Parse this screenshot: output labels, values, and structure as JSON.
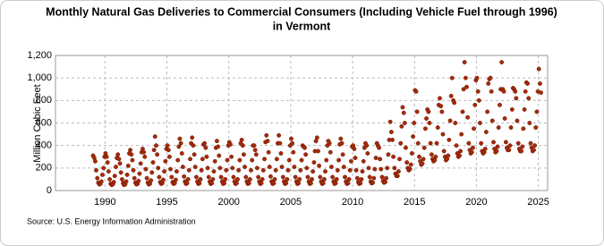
{
  "chart_data": {
    "type": "scatter",
    "title": [
      "Monthly Natural Gas Deliveries to Commercial Consumers (Including Vehicle Fuel through 1996)",
      "in Vermont"
    ],
    "y_label": "Million Cubic Feet",
    "source": "Source: U.S. Energy Information Administration",
    "color": "#a52a0a",
    "grid": true,
    "xlim": [
      1986,
      2025.75
    ],
    "xticks": [
      1990,
      1995,
      2000,
      2005,
      2010,
      2015,
      2020,
      2025
    ],
    "ylim": [
      0,
      1200
    ],
    "yticks": [
      0,
      200,
      400,
      600,
      800,
      {
        "value": 1000,
        "label": "1,000"
      },
      {
        "value": 1200,
        "label": "1,200"
      }
    ],
    "x": [
      1989.04,
      1989.13,
      1989.21,
      1989.29,
      1989.38,
      1989.46,
      1989.54,
      1989.63,
      1989.71,
      1989.79,
      1989.88,
      1989.96,
      1990.04,
      1990.13,
      1990.21,
      1990.29,
      1990.38,
      1990.46,
      1990.54,
      1990.63,
      1990.71,
      1990.79,
      1990.88,
      1990.96,
      1991.04,
      1991.13,
      1991.21,
      1991.29,
      1991.38,
      1991.46,
      1991.54,
      1991.63,
      1991.71,
      1991.79,
      1991.88,
      1991.96,
      1992.04,
      1992.13,
      1992.21,
      1992.29,
      1992.38,
      1992.46,
      1992.54,
      1992.63,
      1992.71,
      1992.79,
      1992.88,
      1992.96,
      1993.04,
      1993.13,
      1993.21,
      1993.29,
      1993.38,
      1993.46,
      1993.54,
      1993.63,
      1993.71,
      1993.79,
      1993.88,
      1993.96,
      1994.04,
      1994.13,
      1994.21,
      1994.29,
      1994.38,
      1994.46,
      1994.54,
      1994.63,
      1994.71,
      1994.79,
      1994.88,
      1994.96,
      1995.04,
      1995.13,
      1995.21,
      1995.29,
      1995.38,
      1995.46,
      1995.54,
      1995.63,
      1995.71,
      1995.79,
      1995.88,
      1995.96,
      1996.04,
      1996.13,
      1996.21,
      1996.29,
      1996.38,
      1996.46,
      1996.54,
      1996.63,
      1996.71,
      1996.79,
      1996.88,
      1996.96,
      1997.04,
      1997.13,
      1997.21,
      1997.29,
      1997.38,
      1997.46,
      1997.54,
      1997.63,
      1997.71,
      1997.79,
      1997.88,
      1997.96,
      1998.04,
      1998.13,
      1998.21,
      1998.29,
      1998.38,
      1998.46,
      1998.54,
      1998.63,
      1998.71,
      1998.79,
      1998.88,
      1998.96,
      1999.04,
      1999.13,
      1999.21,
      1999.29,
      1999.38,
      1999.46,
      1999.54,
      1999.63,
      1999.71,
      1999.79,
      1999.88,
      1999.96,
      2000.04,
      2000.13,
      2000.21,
      2000.29,
      2000.38,
      2000.46,
      2000.54,
      2000.63,
      2000.71,
      2000.79,
      2000.88,
      2000.96,
      2001.04,
      2001.13,
      2001.21,
      2001.29,
      2001.38,
      2001.46,
      2001.54,
      2001.63,
      2001.71,
      2001.79,
      2001.88,
      2001.96,
      2002.04,
      2002.13,
      2002.21,
      2002.29,
      2002.38,
      2002.46,
      2002.54,
      2002.63,
      2002.71,
      2002.79,
      2002.88,
      2002.96,
      2003.04,
      2003.13,
      2003.21,
      2003.29,
      2003.38,
      2003.46,
      2003.54,
      2003.63,
      2003.71,
      2003.79,
      2003.88,
      2003.96,
      2004.04,
      2004.13,
      2004.21,
      2004.29,
      2004.38,
      2004.46,
      2004.54,
      2004.63,
      2004.71,
      2004.79,
      2004.88,
      2004.96,
      2005.04,
      2005.13,
      2005.21,
      2005.29,
      2005.38,
      2005.46,
      2005.54,
      2005.63,
      2005.71,
      2005.79,
      2005.88,
      2005.96,
      2006.04,
      2006.13,
      2006.21,
      2006.29,
      2006.38,
      2006.46,
      2006.54,
      2006.63,
      2006.71,
      2006.79,
      2006.88,
      2006.96,
      2007.04,
      2007.13,
      2007.21,
      2007.29,
      2007.38,
      2007.46,
      2007.54,
      2007.63,
      2007.71,
      2007.79,
      2007.88,
      2007.96,
      2008.04,
      2008.13,
      2008.21,
      2008.29,
      2008.38,
      2008.46,
      2008.54,
      2008.63,
      2008.71,
      2008.79,
      2008.88,
      2008.96,
      2009.04,
      2009.13,
      2009.21,
      2009.29,
      2009.38,
      2009.46,
      2009.54,
      2009.63,
      2009.71,
      2009.79,
      2009.88,
      2009.96,
      2010.04,
      2010.13,
      2010.21,
      2010.29,
      2010.38,
      2010.46,
      2010.54,
      2010.63,
      2010.71,
      2010.79,
      2010.88,
      2010.96,
      2011.04,
      2011.13,
      2011.21,
      2011.29,
      2011.38,
      2011.46,
      2011.54,
      2011.63,
      2011.71,
      2011.79,
      2011.88,
      2011.96,
      2012.04,
      2012.13,
      2012.21,
      2012.29,
      2012.38,
      2012.46,
      2012.54,
      2012.63,
      2012.71,
      2012.79,
      2012.88,
      2012.96,
      2013.04,
      2013.13,
      2013.21,
      2013.29,
      2013.38,
      2013.46,
      2013.54,
      2013.63,
      2013.71,
      2013.79,
      2013.88,
      2013.96,
      2014.04,
      2014.13,
      2014.21,
      2014.29,
      2014.38,
      2014.46,
      2014.54,
      2014.63,
      2014.71,
      2014.79,
      2014.88,
      2014.96,
      2015.04,
      2015.13,
      2015.21,
      2015.29,
      2015.38,
      2015.46,
      2015.54,
      2015.63,
      2015.71,
      2015.79,
      2015.88,
      2015.96,
      2016.04,
      2016.13,
      2016.21,
      2016.29,
      2016.38,
      2016.46,
      2016.54,
      2016.63,
      2016.71,
      2016.79,
      2016.88,
      2016.96,
      2017.04,
      2017.13,
      2017.21,
      2017.29,
      2017.38,
      2017.46,
      2017.54,
      2017.63,
      2017.71,
      2017.79,
      2017.88,
      2017.96,
      2018.04,
      2018.13,
      2018.21,
      2018.29,
      2018.38,
      2018.46,
      2018.54,
      2018.63,
      2018.71,
      2018.79,
      2018.88,
      2018.96,
      2019.04,
      2019.13,
      2019.21,
      2019.29,
      2019.38,
      2019.46,
      2019.54,
      2019.63,
      2019.71,
      2019.79,
      2019.88,
      2019.96,
      2020.04,
      2020.13,
      2020.21,
      2020.29,
      2020.38,
      2020.46,
      2020.54,
      2020.63,
      2020.71,
      2020.79,
      2020.88,
      2020.96,
      2021.04,
      2021.13,
      2021.21,
      2021.29,
      2021.38,
      2021.46,
      2021.54,
      2021.63,
      2021.71,
      2021.79,
      2021.88,
      2021.96,
      2022.04,
      2022.13,
      2022.21,
      2022.29,
      2022.38,
      2022.46,
      2022.54,
      2022.63,
      2022.71,
      2022.79,
      2022.88,
      2022.96,
      2023.04,
      2023.13,
      2023.21,
      2023.29,
      2023.38,
      2023.46,
      2023.54,
      2023.63,
      2023.71,
      2023.79,
      2023.88,
      2023.96,
      2024.04,
      2024.13,
      2024.21,
      2024.29,
      2024.38,
      2024.46,
      2024.54,
      2024.63,
      2024.71,
      2024.79,
      2024.88,
      2024.96,
      2025.04,
      2025.13,
      2025.21
    ],
    "values": [
      310,
      290,
      260,
      180,
      110,
      70,
      55,
      60,
      80,
      140,
      200,
      300,
      330,
      300,
      250,
      170,
      100,
      60,
      50,
      55,
      75,
      130,
      210,
      290,
      320,
      280,
      240,
      160,
      100,
      65,
      50,
      55,
      80,
      140,
      220,
      330,
      360,
      320,
      270,
      180,
      110,
      70,
      55,
      60,
      85,
      150,
      240,
      340,
      370,
      340,
      300,
      190,
      110,
      70,
      55,
      60,
      90,
      160,
      250,
      360,
      480,
      400,
      320,
      200,
      120,
      75,
      60,
      65,
      95,
      170,
      260,
      370,
      400,
      360,
      300,
      190,
      120,
      75,
      60,
      65,
      95,
      170,
      270,
      390,
      460,
      420,
      330,
      210,
      125,
      80,
      60,
      65,
      100,
      180,
      280,
      420,
      470,
      400,
      320,
      210,
      120,
      80,
      60,
      65,
      100,
      180,
      280,
      410,
      420,
      380,
      300,
      200,
      120,
      80,
      60,
      65,
      100,
      170,
      260,
      380,
      440,
      390,
      310,
      200,
      120,
      80,
      60,
      65,
      100,
      180,
      270,
      400,
      430,
      410,
      300,
      200,
      120,
      80,
      60,
      65,
      100,
      180,
      270,
      420,
      450,
      400,
      320,
      210,
      120,
      80,
      60,
      65,
      100,
      180,
      270,
      400,
      400,
      360,
      320,
      200,
      120,
      80,
      60,
      65,
      100,
      180,
      280,
      430,
      490,
      440,
      340,
      210,
      125,
      80,
      60,
      65,
      100,
      180,
      280,
      420,
      490,
      420,
      330,
      210,
      120,
      80,
      60,
      65,
      100,
      180,
      270,
      400,
      460,
      420,
      340,
      210,
      120,
      80,
      60,
      65,
      100,
      180,
      270,
      400,
      390,
      380,
      320,
      200,
      120,
      80,
      60,
      65,
      100,
      170,
      250,
      350,
      440,
      470,
      350,
      220,
      120,
      80,
      60,
      65,
      100,
      170,
      270,
      400,
      440,
      420,
      340,
      210,
      120,
      80,
      60,
      65,
      100,
      180,
      270,
      410,
      460,
      420,
      320,
      210,
      120,
      80,
      60,
      65,
      100,
      180,
      260,
      390,
      400,
      370,
      290,
      180,
      110,
      75,
      60,
      65,
      100,
      170,
      260,
      380,
      420,
      400,
      330,
      200,
      120,
      80,
      65,
      70,
      110,
      190,
      290,
      420,
      400,
      380,
      280,
      190,
      120,
      85,
      70,
      75,
      110,
      200,
      320,
      450,
      610,
      520,
      450,
      300,
      200,
      150,
      130,
      130,
      170,
      280,
      420,
      570,
      740,
      690,
      600,
      380,
      250,
      200,
      180,
      190,
      230,
      330,
      480,
      600,
      890,
      880,
      700,
      420,
      300,
      260,
      230,
      240,
      280,
      380,
      550,
      640,
      720,
      700,
      600,
      420,
      320,
      280,
      260,
      270,
      300,
      420,
      560,
      760,
      820,
      750,
      700,
      500,
      350,
      300,
      270,
      280,
      310,
      450,
      620,
      840,
      1000,
      800,
      780,
      600,
      400,
      330,
      300,
      310,
      350,
      500,
      700,
      900,
      1140,
      1000,
      920,
      650,
      420,
      360,
      330,
      340,
      380,
      550,
      760,
      980,
      1000,
      880,
      800,
      600,
      420,
      350,
      330,
      340,
      370,
      520,
      700,
      950,
      990,
      1000,
      880,
      620,
      430,
      370,
      340,
      350,
      390,
      560,
      760,
      900,
      1140,
      900,
      880,
      640,
      430,
      380,
      360,
      360,
      400,
      560,
      720,
      910,
      900,
      880,
      820,
      620,
      420,
      370,
      350,
      350,
      390,
      550,
      720,
      880,
      960,
      950,
      820,
      600,
      420,
      380,
      350,
      360,
      400,
      560,
      700,
      880,
      1080,
      950,
      870
    ]
  }
}
